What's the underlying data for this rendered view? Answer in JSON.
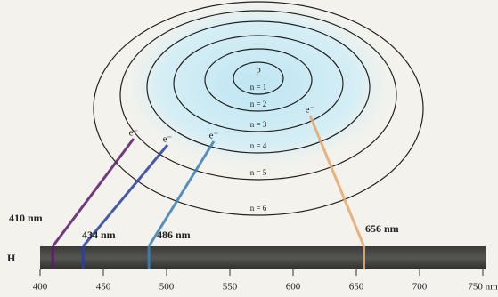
{
  "nucleus": "p",
  "levels": [
    "n = 1",
    "n = 2",
    "n = 3",
    "n = 4",
    "n = 5",
    "n = 6"
  ],
  "electrons": [
    "e⁻",
    "e⁻",
    "e⁻",
    "e⁻"
  ],
  "spectrum": {
    "element": "H",
    "range": [
      400,
      750
    ],
    "ticks": [
      400,
      450,
      500,
      550,
      600,
      650,
      700,
      {
        "value": 750,
        "label": "750 nm"
      }
    ],
    "lines": [
      {
        "label": "410 nm",
        "wavelength": 410,
        "color": "#5a1a6a"
      },
      {
        "label": "434 nm",
        "wavelength": 434,
        "color": "#2a3f9e"
      },
      {
        "label": "486 nm",
        "wavelength": 486,
        "color": "#3a7fb5"
      },
      {
        "label": "656 nm",
        "wavelength": 656,
        "color": "#e8a86a"
      }
    ]
  }
}
